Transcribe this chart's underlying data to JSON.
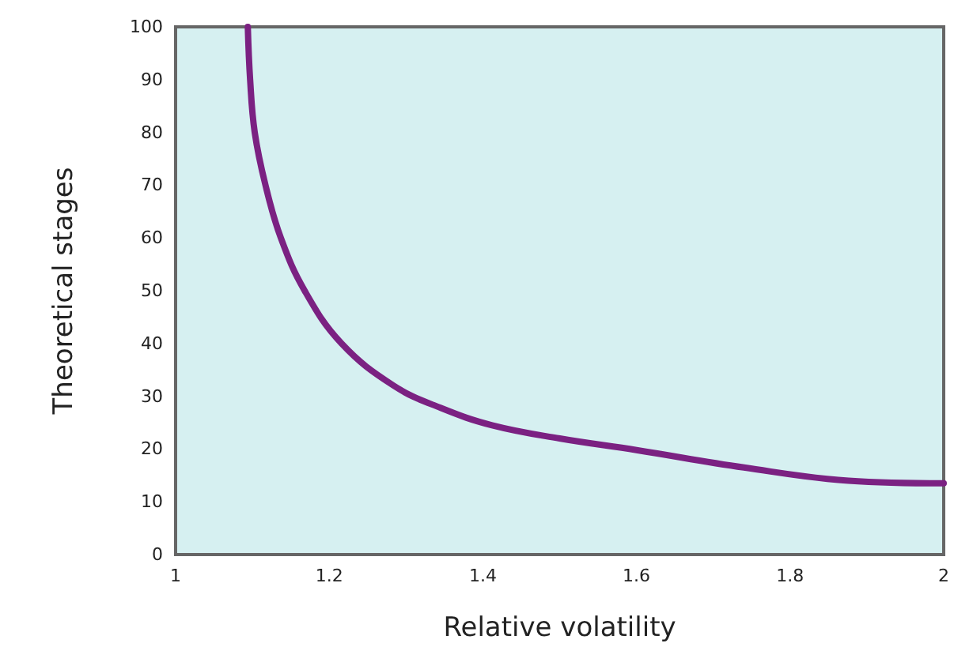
{
  "chart_data": {
    "type": "line",
    "xlabel": "Relative volatility",
    "ylabel": "Theoretical stages",
    "series": [
      {
        "color": "#7b2182",
        "x": [
          1.094,
          1.097,
          1.103,
          1.117,
          1.137,
          1.168,
          1.216,
          1.284,
          1.345,
          1.412,
          1.5,
          1.6,
          1.74,
          1.876,
          2.0
        ],
        "values": [
          100,
          90,
          80,
          70,
          60,
          50,
          40,
          32,
          27.8,
          24.5,
          22,
          19.8,
          16.5,
          14,
          13.5
        ]
      }
    ],
    "xlim": [
      1,
      2
    ],
    "xticks": [
      1,
      1.2,
      1.4,
      1.6,
      1.8,
      2
    ],
    "ylim": [
      0,
      100
    ],
    "yticks": [
      0,
      10,
      20,
      30,
      40,
      50,
      60,
      70,
      80,
      90,
      100
    ],
    "grid": false,
    "marker": "none",
    "line_style": "solid"
  }
}
